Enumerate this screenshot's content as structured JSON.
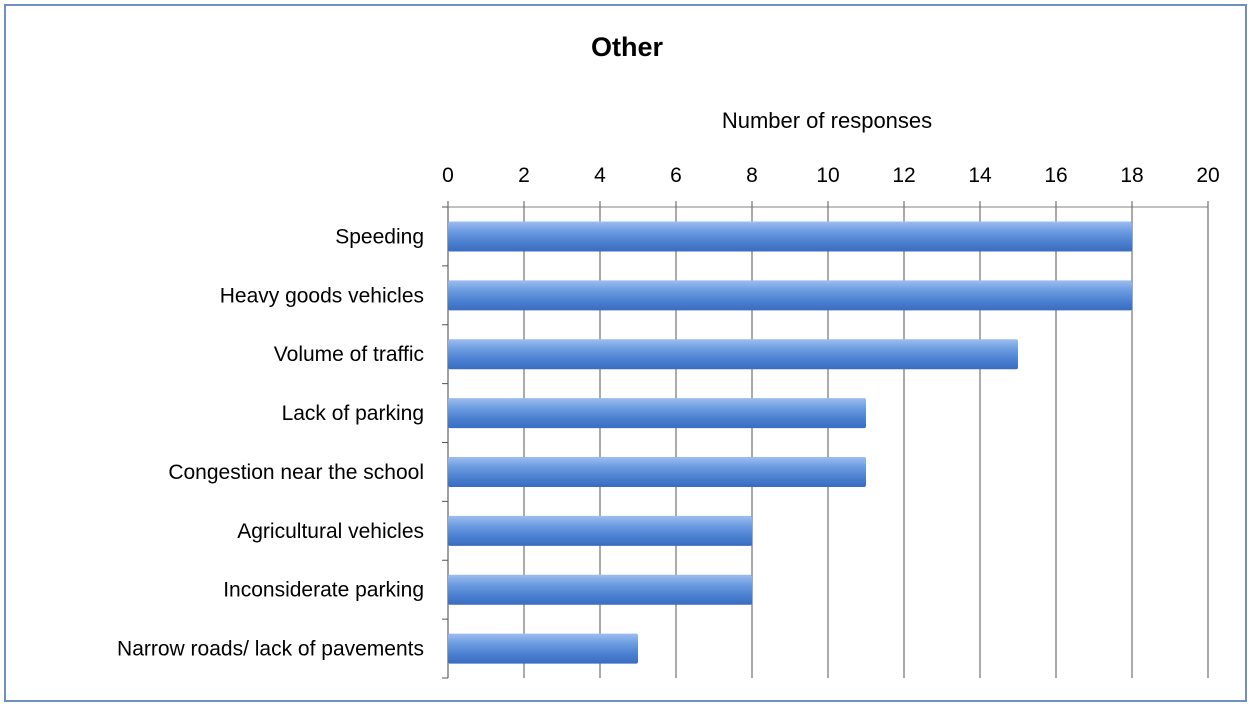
{
  "chart_data": {
    "type": "bar",
    "orientation": "horizontal",
    "title": "Other",
    "xlabel": "Number of responses",
    "ylabel": "",
    "xlim": [
      0,
      20
    ],
    "ticks": [
      "0",
      "2",
      "4",
      "6",
      "8",
      "10",
      "12",
      "14",
      "16",
      "18",
      "20"
    ],
    "grid": true,
    "x_axis_position": "top",
    "categories": [
      "Speeding",
      "Heavy goods vehicles",
      "Volume of traffic",
      "Lack of parking",
      "Congestion near the school",
      "Agricultural vehicles",
      "Inconsiderate parking",
      "Narrow roads/ lack of pavements"
    ],
    "values": [
      18,
      18,
      15,
      11,
      11,
      8,
      8,
      5
    ],
    "bar_color": "#5b8ed8"
  }
}
